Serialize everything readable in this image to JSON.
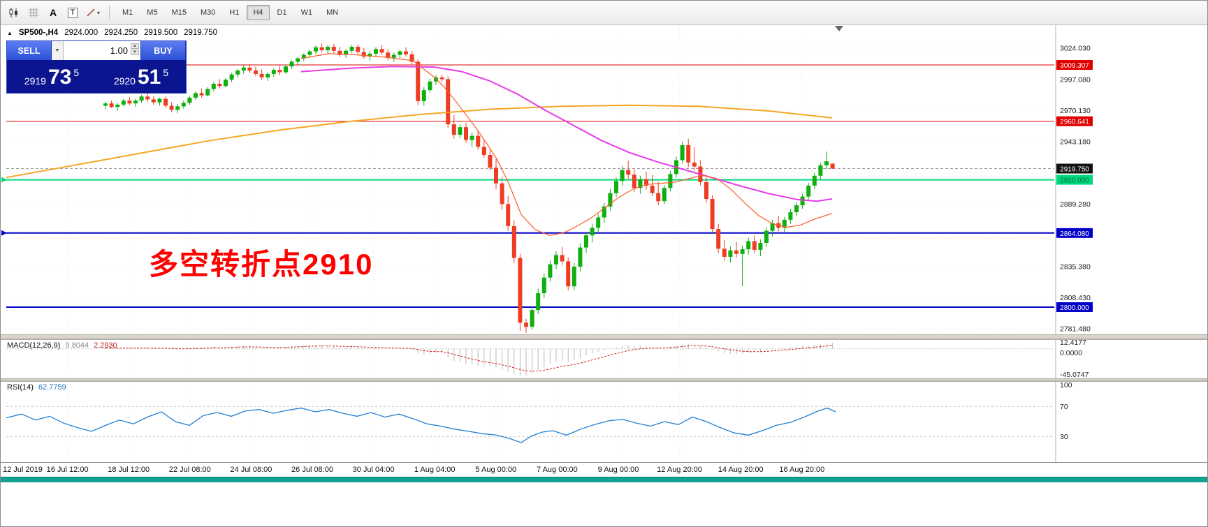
{
  "toolbar": {
    "text_tool_glyph": "A",
    "textbox_tool_glyph": "T",
    "caret_glyph": "▾",
    "timeframes": [
      "M1",
      "M5",
      "M15",
      "M30",
      "H1",
      "H4",
      "D1",
      "W1",
      "MN"
    ],
    "active_timeframe": "H4"
  },
  "quote": {
    "toggle_icon": "▲",
    "symbol": "SP500-,H4",
    "open": "2924.000",
    "high": "2924.250",
    "low": "2919.500",
    "close": "2919.750"
  },
  "trade_panel": {
    "sell_label": "SELL",
    "buy_label": "BUY",
    "lot": "1.00",
    "combo_caret": "▼",
    "spin_up": "▲",
    "spin_down": "▼",
    "sell_price_small": "2919",
    "sell_price_big": "73",
    "sell_price_sup": "5",
    "buy_price_small": "2920",
    "buy_price_big": "51",
    "buy_price_sup": "5"
  },
  "annotation": {
    "text": "多空转折点2910",
    "color": "#ff0000"
  },
  "chart_data": {
    "type": "candlestick",
    "symbol": "SP500-",
    "timeframe": "H4",
    "colors": {
      "up": "#0faf0f",
      "down": "#ee3d23",
      "ma_slow": "#f5a623",
      "ma_medium": "#e83ae8",
      "ma_fast": "#ff5a28"
    },
    "price_axis_labels": [
      "3024.030",
      "2997.080",
      "2970.130",
      "2943.180",
      "2889.280",
      "2835.380",
      "2808.430",
      "2781.480"
    ],
    "grid_prices": [
      3024.03,
      2997.08,
      2970.13,
      2943.18,
      2916.23,
      2889.28,
      2862.33,
      2835.38,
      2808.43,
      2781.48
    ],
    "hlines": [
      {
        "value": 3009.307,
        "label": "3009.307",
        "color": "#e00000",
        "lw": 1,
        "box_bg": "#e00000",
        "box_fg": "#ffffff",
        "left_marker": false
      },
      {
        "value": 2960.641,
        "label": "2960.641",
        "color": "#e00000",
        "lw": 1,
        "box_bg": "#e00000",
        "box_fg": "#ffffff",
        "left_marker": false
      },
      {
        "value": 2910.0,
        "label": "2910.000",
        "color": "#00d87e",
        "lw": 2,
        "box_bg": "#00d87e",
        "box_fg": "#056b42",
        "left_marker": true
      },
      {
        "value": 2864.08,
        "label": "2864.080",
        "color": "#0000c8",
        "lw": 2,
        "box_bg": "#0000c8",
        "box_fg": "#ffffff",
        "left_marker": true
      },
      {
        "value": 2800.0,
        "label": "2800.000",
        "color": "#0000c8",
        "lw": 2,
        "box_bg": "#0000c8",
        "box_fg": "#ffffff",
        "left_marker": false
      }
    ],
    "current_price": {
      "value": 2919.75,
      "label": "2919.750"
    },
    "candles": [
      [
        2974,
        2977.5,
        2971,
        2976
      ],
      [
        2976,
        2978.5,
        2972,
        2973
      ],
      [
        2973,
        2976.5,
        2969.5,
        2975
      ],
      [
        2975,
        2980,
        2973.5,
        2978.5
      ],
      [
        2978.5,
        2981.5,
        2974.5,
        2976
      ],
      [
        2976,
        2980,
        2973,
        2978.5
      ],
      [
        2978.5,
        2983.5,
        2976.5,
        2982
      ],
      [
        2982,
        2985,
        2977.5,
        2979.5
      ],
      [
        2979.5,
        2982.5,
        2975,
        2977
      ],
      [
        2977,
        2981,
        2974,
        2980
      ],
      [
        2980,
        2982,
        2972,
        2974
      ],
      [
        2974,
        2977,
        2968.5,
        2970.5
      ],
      [
        2970.5,
        2975.5,
        2967.5,
        2973.5
      ],
      [
        2973.5,
        2978.5,
        2971.5,
        2976.5
      ],
      [
        2976.5,
        2982.5,
        2975,
        2981
      ],
      [
        2981,
        2986.5,
        2979,
        2985
      ],
      [
        2985,
        2989,
        2981,
        2983
      ],
      [
        2983,
        2990,
        2982,
        2988.5
      ],
      [
        2988.5,
        2994.5,
        2986.5,
        2993
      ],
      [
        2993,
        2997,
        2989,
        2991
      ],
      [
        2991,
        2998,
        2990,
        2996.5
      ],
      [
        2996.5,
        3002.5,
        2994.5,
        3001
      ],
      [
        3001,
        3006,
        2998.5,
        3004.5
      ],
      [
        3004.5,
        3009,
        3001.5,
        3007
      ],
      [
        3007,
        3010,
        3002.5,
        3004.5
      ],
      [
        3004.5,
        3008,
        2999.5,
        3001.5
      ],
      [
        3001.5,
        3005.5,
        2996.5,
        2998.5
      ],
      [
        2998.5,
        3003,
        2995.5,
        3001.5
      ],
      [
        3001.5,
        3006.5,
        2999,
        3005
      ],
      [
        3005,
        3008.5,
        3000.5,
        3003
      ],
      [
        3003,
        3009.5,
        3001.5,
        3008
      ],
      [
        3008,
        3013.5,
        3006,
        3012
      ],
      [
        3012,
        3016.5,
        3009.5,
        3015
      ],
      [
        3015,
        3019.5,
        3012.5,
        3018
      ],
      [
        3018,
        3022.5,
        3015.5,
        3021
      ],
      [
        3021,
        3026,
        3018.5,
        3024.5
      ],
      [
        3024.5,
        3028,
        3020,
        3022
      ],
      [
        3022,
        3026.5,
        3019,
        3025
      ],
      [
        3025,
        3027.5,
        3019.5,
        3021.5
      ],
      [
        3021.5,
        3025,
        3016,
        3018
      ],
      [
        3018,
        3023,
        3015.5,
        3021.5
      ],
      [
        3021.5,
        3026.5,
        3019.5,
        3025
      ],
      [
        3025,
        3027,
        3018.5,
        3020.5
      ],
      [
        3020.5,
        3024,
        3014.5,
        3016.5
      ],
      [
        3016.5,
        3021,
        3013,
        3019
      ],
      [
        3019,
        3024.5,
        3017,
        3023
      ],
      [
        3023,
        3026.5,
        3018,
        3020
      ],
      [
        3020,
        3023,
        3013.5,
        3015.5
      ],
      [
        3015.5,
        3020,
        3012,
        3018
      ],
      [
        3018,
        3022.5,
        3015,
        3021
      ],
      [
        3021,
        3024.5,
        3016.5,
        3018.5
      ],
      [
        3018.5,
        3021.5,
        3010,
        3012
      ],
      [
        3012,
        3014,
        2974.5,
        2978
      ],
      [
        2978,
        2990,
        2974,
        2987.5
      ],
      [
        2987.5,
        2997.5,
        2985.5,
        2995
      ],
      [
        2995,
        3000.5,
        2992,
        2998.5
      ],
      [
        2998.5,
        3001,
        2994.5,
        2997
      ],
      [
        2997,
        2999.5,
        2955,
        2958
      ],
      [
        2958,
        2966,
        2945.5,
        2949
      ],
      [
        2949,
        2958,
        2946,
        2955.5
      ],
      [
        2955.5,
        2959.5,
        2942,
        2944.5
      ],
      [
        2944.5,
        2951,
        2938.5,
        2948
      ],
      [
        2948,
        2952.5,
        2936,
        2938.5
      ],
      [
        2938.5,
        2944,
        2929,
        2931.5
      ],
      [
        2931.5,
        2936,
        2918,
        2920.5
      ],
      [
        2920.5,
        2928,
        2902,
        2907
      ],
      [
        2907,
        2912.5,
        2884,
        2889
      ],
      [
        2889,
        2896,
        2866,
        2870
      ],
      [
        2870,
        2875,
        2838,
        2842.5
      ],
      [
        2842.5,
        2846,
        2779.5,
        2786.5
      ],
      [
        2786.5,
        2790,
        2778,
        2783
      ],
      [
        2783,
        2800.5,
        2780.5,
        2797.5
      ],
      [
        2797.5,
        2816,
        2794,
        2812
      ],
      [
        2812,
        2829,
        2808,
        2825.5
      ],
      [
        2825.5,
        2840,
        2822,
        2837
      ],
      [
        2837,
        2848,
        2833,
        2845
      ],
      [
        2845,
        2852,
        2836.5,
        2839.5
      ],
      [
        2839.5,
        2843,
        2814.5,
        2818
      ],
      [
        2818,
        2838,
        2815,
        2835
      ],
      [
        2835,
        2855,
        2831,
        2851.5
      ],
      [
        2851.5,
        2865,
        2847,
        2862
      ],
      [
        2862,
        2872,
        2856,
        2868.5
      ],
      [
        2868.5,
        2880.5,
        2864,
        2877.5
      ],
      [
        2877.5,
        2890,
        2873,
        2887
      ],
      [
        2887,
        2902,
        2883.5,
        2898.5
      ],
      [
        2898.5,
        2912,
        2895,
        2909
      ],
      [
        2909,
        2922,
        2905,
        2918.5
      ],
      [
        2918.5,
        2926.5,
        2911,
        2914.5
      ],
      [
        2914.5,
        2919,
        2899.5,
        2903
      ],
      [
        2903,
        2913.5,
        2898,
        2910.5
      ],
      [
        2910.5,
        2917,
        2901.5,
        2905
      ],
      [
        2905,
        2914,
        2896,
        2898.5
      ],
      [
        2898.5,
        2908,
        2888,
        2891.5
      ],
      [
        2891.5,
        2905.5,
        2889,
        2903
      ],
      [
        2903,
        2917.5,
        2900,
        2915
      ],
      [
        2915,
        2930,
        2912,
        2927
      ],
      [
        2927,
        2943,
        2924,
        2940
      ],
      [
        2940,
        2945.5,
        2921,
        2925
      ],
      [
        2925,
        2938,
        2918,
        2921.5
      ],
      [
        2921.5,
        2927,
        2905,
        2908
      ],
      [
        2908,
        2912,
        2890,
        2893.5
      ],
      [
        2893.5,
        2897,
        2864,
        2867.5
      ],
      [
        2867.5,
        2872,
        2847,
        2850.5
      ],
      [
        2850.5,
        2858,
        2840,
        2843.5
      ],
      [
        2843.5,
        2852.5,
        2838.5,
        2849
      ],
      [
        2849,
        2856.5,
        2843,
        2846
      ],
      [
        2846,
        2853,
        2818,
        2850
      ],
      [
        2850,
        2860,
        2845.5,
        2857
      ],
      [
        2857,
        2862,
        2846.5,
        2849.5
      ],
      [
        2849.5,
        2858.5,
        2844,
        2855.5
      ],
      [
        2855.5,
        2869,
        2852,
        2866
      ],
      [
        2866,
        2875.5,
        2861,
        2872.5
      ],
      [
        2872.5,
        2879,
        2865.5,
        2868.5
      ],
      [
        2868.5,
        2878,
        2864,
        2875.5
      ],
      [
        2875.5,
        2885,
        2872,
        2882
      ],
      [
        2882,
        2890.5,
        2878.5,
        2888
      ],
      [
        2888,
        2898,
        2885,
        2895.5
      ],
      [
        2895.5,
        2907.5,
        2893,
        2905
      ],
      [
        2905,
        2916,
        2902,
        2913.5
      ],
      [
        2913.5,
        2925,
        2910.5,
        2922.5
      ],
      [
        2922.5,
        2934.5,
        2919,
        2926
      ],
      [
        2924,
        2924.25,
        2919.5,
        2919.75
      ]
    ],
    "ma_slow": [
      [
        8,
        2912
      ],
      [
        100,
        2922
      ],
      [
        200,
        2933
      ],
      [
        300,
        2944
      ],
      [
        400,
        2953
      ],
      [
        500,
        2960.5
      ],
      [
        600,
        2966.5
      ],
      [
        700,
        2971
      ],
      [
        800,
        2973.5
      ],
      [
        900,
        2974.5
      ],
      [
        1000,
        2973.5
      ],
      [
        1100,
        2969.5
      ],
      [
        1190,
        2963.5
      ]
    ],
    "ma_medium": [
      [
        430,
        3003.5
      ],
      [
        500,
        3006.5
      ],
      [
        560,
        3008
      ],
      [
        620,
        3007.5
      ],
      [
        660,
        3003.5
      ],
      [
        700,
        2995.5
      ],
      [
        740,
        2984
      ],
      [
        780,
        2970
      ],
      [
        820,
        2957
      ],
      [
        860,
        2944
      ],
      [
        900,
        2933.5
      ],
      [
        940,
        2925.5
      ],
      [
        980,
        2918.5
      ],
      [
        1020,
        2911.5
      ],
      [
        1060,
        2904.5
      ],
      [
        1100,
        2898
      ],
      [
        1140,
        2893
      ],
      [
        1168,
        2891.5
      ],
      [
        1190,
        2893.5
      ]
    ],
    "ma_fast": [
      [
        430,
        3015
      ],
      [
        470,
        3019
      ],
      [
        510,
        3018
      ],
      [
        550,
        3016
      ],
      [
        590,
        3013
      ],
      [
        605,
        3006
      ],
      [
        620,
        2999
      ],
      [
        635,
        2990
      ],
      [
        650,
        2979
      ],
      [
        665,
        2967
      ],
      [
        680,
        2955
      ],
      [
        695,
        2942
      ],
      [
        710,
        2928
      ],
      [
        725,
        2910
      ],
      [
        745,
        2880
      ],
      [
        765,
        2867
      ],
      [
        785,
        2862
      ],
      [
        805,
        2864
      ],
      [
        825,
        2870
      ],
      [
        845,
        2877
      ],
      [
        865,
        2886
      ],
      [
        885,
        2895
      ],
      [
        905,
        2902
      ],
      [
        925,
        2906
      ],
      [
        945,
        2907
      ],
      [
        965,
        2908
      ],
      [
        985,
        2911
      ],
      [
        1005,
        2914
      ],
      [
        1025,
        2911
      ],
      [
        1045,
        2902
      ],
      [
        1065,
        2890
      ],
      [
        1085,
        2879
      ],
      [
        1105,
        2872
      ],
      [
        1125,
        2869
      ],
      [
        1145,
        2871
      ],
      [
        1165,
        2876
      ],
      [
        1190,
        2881
      ]
    ]
  },
  "macd": {
    "name": "MACD(12,26,9)",
    "value_main": "9.8044",
    "value_signal": "2.2930",
    "scale_max": 12.4177,
    "scale_min": -45.0747,
    "scale_labels": {
      "top": "12.4177",
      "zero": "0.0000",
      "bottom": "-45.0747"
    },
    "histogram": [
      1.2,
      1.5,
      0.8,
      1.8,
      1.1,
      0.6,
      1.4,
      1.9,
      0.9,
      1.3,
      0.2,
      -0.8,
      -1.2,
      -0.4,
      0.6,
      1.6,
      2.2,
      2.8,
      3.4,
      2.6,
      3,
      3.8,
      4.4,
      4.8,
      4,
      2.8,
      1.6,
      1.2,
      2,
      2.4,
      3.2,
      4.2,
      5,
      5.6,
      6,
      6.4,
      5.4,
      5,
      4.2,
      3,
      2.4,
      3,
      2.6,
      1.4,
      0.8,
      1.6,
      1.2,
      0.2,
      -0.2,
      0.6,
      0.2,
      -1.5,
      -8,
      -10,
      -8.5,
      -6,
      -5,
      -14,
      -20,
      -22,
      -25,
      -26.5,
      -28,
      -29.5,
      -29,
      -31,
      -34,
      -38,
      -42,
      -45,
      -44,
      -40,
      -35,
      -30,
      -25.5,
      -22,
      -20,
      -21.5,
      -19,
      -15,
      -11,
      -7.5,
      -4.5,
      -2,
      0.5,
      3,
      5,
      6,
      5.5,
      4.5,
      4,
      3,
      2,
      2.5,
      4,
      6,
      8,
      8.5,
      7,
      5,
      2.5,
      -1,
      -4.5,
      -7,
      -8,
      -8.5,
      -8,
      -6.5,
      -5.5,
      -4,
      -2.5,
      -1,
      0.5,
      1.5,
      2.5,
      3.5,
      4.5,
      5.5,
      6.5,
      7.5,
      8.8,
      9.8
    ]
  },
  "rsi": {
    "name": "RSI(14)",
    "value": "62.7759",
    "levels": [
      70,
      30
    ],
    "scale_labels": [
      "100",
      "70",
      "30"
    ],
    "points": [
      [
        8,
        55
      ],
      [
        30,
        60
      ],
      [
        50,
        52
      ],
      [
        70,
        57
      ],
      [
        90,
        48
      ],
      [
        110,
        42
      ],
      [
        130,
        37
      ],
      [
        150,
        45
      ],
      [
        170,
        52
      ],
      [
        190,
        47
      ],
      [
        210,
        56
      ],
      [
        230,
        63
      ],
      [
        250,
        50
      ],
      [
        270,
        45
      ],
      [
        290,
        58
      ],
      [
        310,
        62
      ],
      [
        330,
        57
      ],
      [
        350,
        64
      ],
      [
        370,
        66
      ],
      [
        390,
        61
      ],
      [
        410,
        65
      ],
      [
        430,
        68
      ],
      [
        450,
        63
      ],
      [
        470,
        66
      ],
      [
        490,
        61
      ],
      [
        510,
        57
      ],
      [
        530,
        62
      ],
      [
        550,
        56
      ],
      [
        570,
        60
      ],
      [
        590,
        54
      ],
      [
        610,
        47
      ],
      [
        630,
        44
      ],
      [
        650,
        40
      ],
      [
        670,
        37
      ],
      [
        690,
        34
      ],
      [
        710,
        32
      ],
      [
        730,
        27
      ],
      [
        745,
        22
      ],
      [
        760,
        31
      ],
      [
        775,
        36
      ],
      [
        790,
        38
      ],
      [
        810,
        32
      ],
      [
        830,
        40
      ],
      [
        850,
        46
      ],
      [
        870,
        51
      ],
      [
        890,
        53
      ],
      [
        910,
        48
      ],
      [
        930,
        44
      ],
      [
        950,
        50
      ],
      [
        970,
        46
      ],
      [
        990,
        56
      ],
      [
        1010,
        50
      ],
      [
        1030,
        42
      ],
      [
        1050,
        35
      ],
      [
        1070,
        32
      ],
      [
        1090,
        38
      ],
      [
        1110,
        45
      ],
      [
        1130,
        49
      ],
      [
        1150,
        56
      ],
      [
        1170,
        64
      ],
      [
        1183,
        68
      ],
      [
        1195,
        63
      ]
    ]
  },
  "time_axis": {
    "labels": [
      "12 Jul 2019",
      "16 Jul 12:00",
      "18 Jul 12:00",
      "22 Jul 08:00",
      "24 Jul 08:00",
      "26 Jul 08:00",
      "30 Jul 04:00",
      "1 Aug 04:00",
      "5 Aug 00:00",
      "7 Aug 00:00",
      "9 Aug 00:00",
      "12 Aug 20:00",
      "14 Aug 20:00",
      "16 Aug 20:00"
    ]
  }
}
